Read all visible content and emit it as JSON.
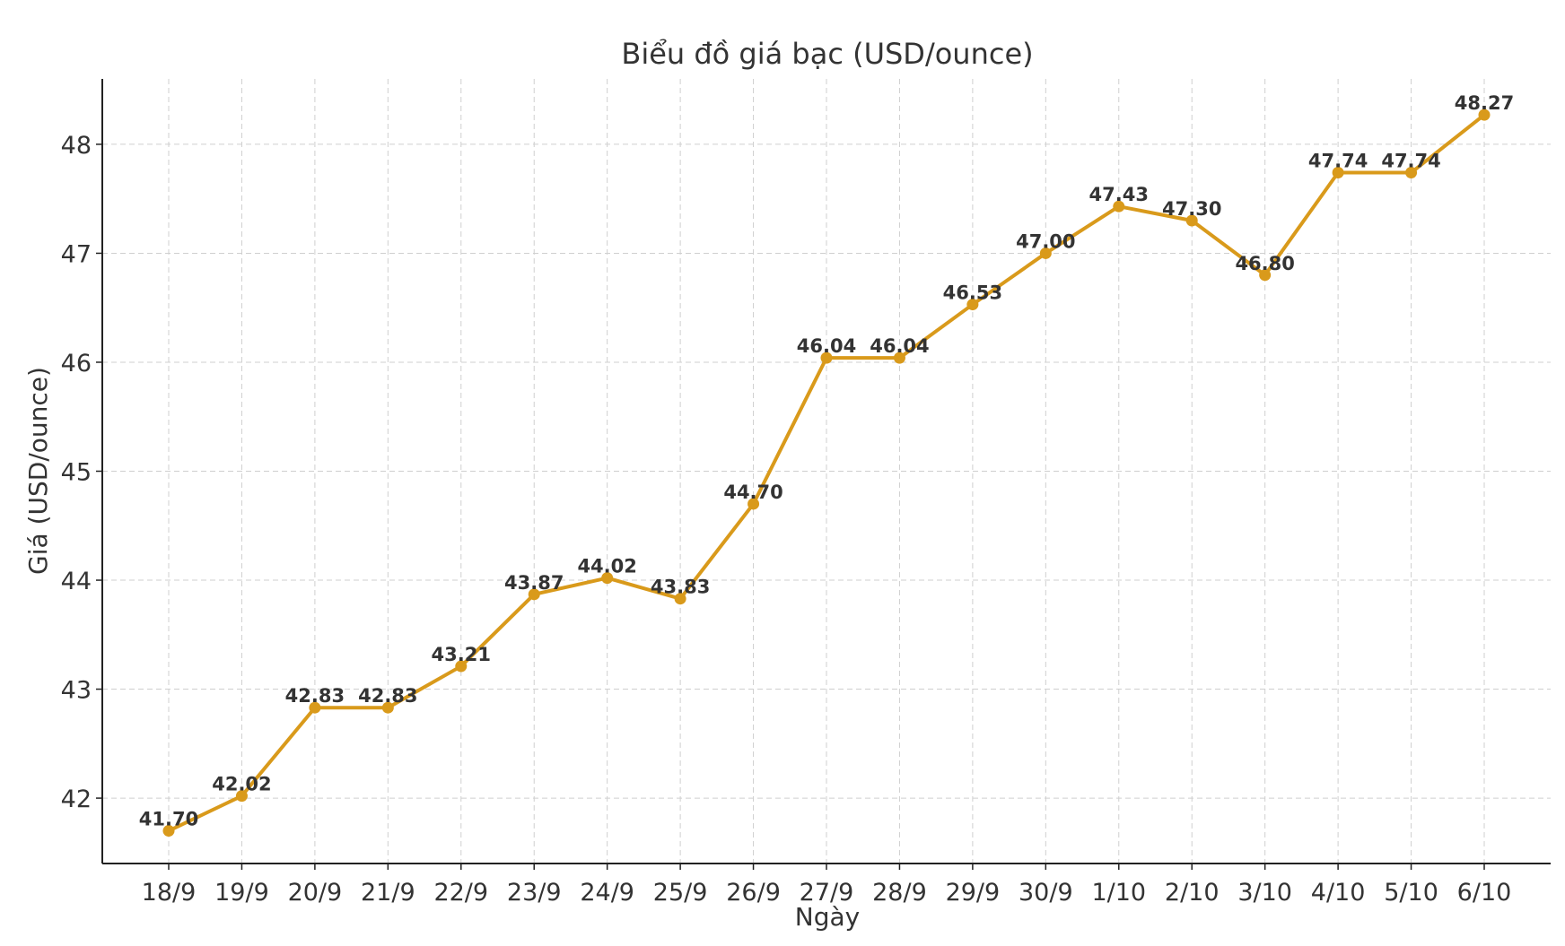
{
  "chart_data": {
    "type": "line",
    "title": "Biểu đồ giá bạc (USD/ounce)",
    "xlabel": "Ngày",
    "ylabel": "Giá (USD/ounce)",
    "categories": [
      "18/9",
      "19/9",
      "20/9",
      "21/9",
      "22/9",
      "23/9",
      "24/9",
      "25/9",
      "26/9",
      "27/9",
      "28/9",
      "29/9",
      "30/9",
      "1/10",
      "2/10",
      "3/10",
      "4/10",
      "5/10",
      "6/10"
    ],
    "series": [
      {
        "values": [
          41.7,
          42.02,
          42.83,
          42.83,
          43.21,
          43.87,
          44.02,
          43.83,
          44.7,
          46.04,
          46.04,
          46.53,
          47.0,
          47.43,
          47.3,
          46.8,
          47.74,
          47.74,
          48.27
        ],
        "labels": [
          "41.70",
          "42.02",
          "42.83",
          "42.83",
          "43.21",
          "43.87",
          "44.02",
          "43.83",
          "44.70",
          "46.04",
          "46.04",
          "46.53",
          "47.00",
          "47.43",
          "47.30",
          "46.80",
          "47.74",
          "47.74",
          "48.27"
        ],
        "color": "#D99A1B"
      }
    ],
    "yticks": [
      "42",
      "43",
      "44",
      "45",
      "46",
      "47",
      "48"
    ],
    "ylim": [
      41.4,
      48.6
    ],
    "grid": true,
    "legend": "none"
  }
}
